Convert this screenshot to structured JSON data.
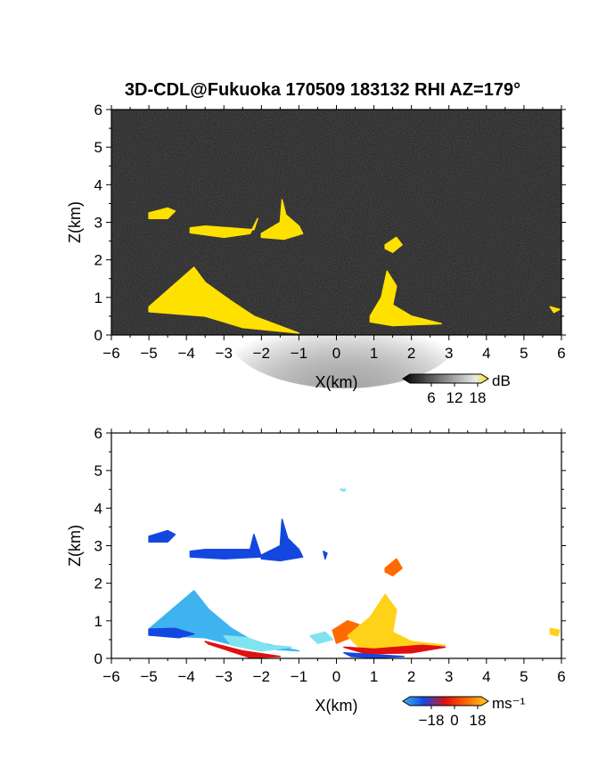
{
  "title": "3D-CDL@Fukuoka 170509 183132 RHI AZ=179°",
  "colors": {
    "snr_bg": "#1c1c1c",
    "snr_high": "#ffe100",
    "vel_neg_far": "#1447e0",
    "vel_neg_mid": "#3fb3f0",
    "vel_neg_near": "#7fe3f0",
    "vel_zero": "#e01010",
    "vel_pos_mid": "#ff6a00",
    "vel_pos_far": "#ffd21a"
  },
  "chart_data": [
    {
      "type": "heatmap",
      "name": "snr",
      "xlabel": "X(km)",
      "ylabel": "Z(km)",
      "xlim": [
        -6,
        6
      ],
      "ylim": [
        0,
        6
      ],
      "xticks": [
        "-6",
        "-5",
        "-4",
        "-3",
        "-2",
        "-1",
        "0",
        "1",
        "2",
        "3",
        "4",
        "5",
        "6"
      ],
      "yticks": [
        "0",
        "1",
        "2",
        "3",
        "4",
        "5",
        "6"
      ],
      "colorbar": {
        "ticks": [
          "6",
          "12",
          "18"
        ],
        "unit": "dB"
      },
      "regions": [
        {
          "color": "#ffe100",
          "points": [
            [
              -5.0,
              3.25
            ],
            [
              -4.5,
              3.38
            ],
            [
              -4.3,
              3.3
            ],
            [
              -4.5,
              3.1
            ],
            [
              -5.0,
              3.1
            ]
          ]
        },
        {
          "color": "#ffe100",
          "points": [
            [
              -3.9,
              2.85
            ],
            [
              -3.5,
              2.9
            ],
            [
              -2.2,
              2.8
            ],
            [
              -2.1,
              3.1
            ],
            [
              -2.3,
              2.7
            ],
            [
              -3.0,
              2.6
            ],
            [
              -3.9,
              2.72
            ]
          ]
        },
        {
          "color": "#ffe100",
          "points": [
            [
              -2.0,
              2.7
            ],
            [
              -1.5,
              3.0
            ],
            [
              -1.45,
              3.6
            ],
            [
              -1.35,
              3.2
            ],
            [
              -1.0,
              2.9
            ],
            [
              -0.9,
              2.7
            ],
            [
              -1.4,
              2.55
            ],
            [
              -2.0,
              2.6
            ]
          ]
        },
        {
          "color": "#ffe100",
          "points": [
            [
              1.3,
              2.4
            ],
            [
              1.6,
              2.6
            ],
            [
              1.75,
              2.4
            ],
            [
              1.5,
              2.2
            ],
            [
              1.3,
              2.3
            ]
          ]
        },
        {
          "color": "#ffe100",
          "points": [
            [
              -5.0,
              0.75
            ],
            [
              -3.8,
              1.8
            ],
            [
              -3.5,
              1.4
            ],
            [
              -2.8,
              0.9
            ],
            [
              -2.2,
              0.5
            ],
            [
              -1.0,
              0.05
            ],
            [
              -2.5,
              0.2
            ],
            [
              -3.5,
              0.5
            ],
            [
              -5.0,
              0.62
            ]
          ]
        },
        {
          "color": "#ffe100",
          "points": [
            [
              0.9,
              0.5
            ],
            [
              1.2,
              1.0
            ],
            [
              1.35,
              1.7
            ],
            [
              1.6,
              1.3
            ],
            [
              1.5,
              0.8
            ],
            [
              2.0,
              0.5
            ],
            [
              2.8,
              0.3
            ],
            [
              1.5,
              0.25
            ],
            [
              0.9,
              0.35
            ]
          ]
        },
        {
          "color": "#ffe100",
          "points": [
            [
              5.7,
              0.75
            ],
            [
              5.95,
              0.68
            ],
            [
              5.8,
              0.6
            ]
          ]
        }
      ]
    },
    {
      "type": "heatmap",
      "name": "velocity",
      "xlabel": "X(km)",
      "ylabel": "Z(km)",
      "xlim": [
        -6,
        6
      ],
      "ylim": [
        0,
        6
      ],
      "xticks": [
        "-6",
        "-5",
        "-4",
        "-3",
        "-2",
        "-1",
        "0",
        "1",
        "2",
        "3",
        "4",
        "5",
        "6"
      ],
      "yticks": [
        "0",
        "1",
        "2",
        "3",
        "4",
        "5",
        "6"
      ],
      "colorbar": {
        "ticks": [
          "−18",
          "0",
          "18"
        ],
        "unit": "ms⁻¹"
      },
      "regions": [
        {
          "color": "#1447e0",
          "points": [
            [
              -5.0,
              3.25
            ],
            [
              -4.5,
              3.4
            ],
            [
              -4.3,
              3.3
            ],
            [
              -4.5,
              3.1
            ],
            [
              -5.0,
              3.1
            ]
          ]
        },
        {
          "color": "#1447e0",
          "points": [
            [
              -3.9,
              2.85
            ],
            [
              -3.5,
              2.9
            ],
            [
              -2.3,
              2.9
            ],
            [
              -2.2,
              3.3
            ],
            [
              -2.0,
              2.7
            ],
            [
              -3.0,
              2.65
            ],
            [
              -3.9,
              2.7
            ]
          ]
        },
        {
          "color": "#1447e0",
          "points": [
            [
              -2.0,
              2.75
            ],
            [
              -1.5,
              3.0
            ],
            [
              -1.45,
              3.7
            ],
            [
              -1.3,
              3.2
            ],
            [
              -1.0,
              2.9
            ],
            [
              -0.9,
              2.7
            ],
            [
              -1.5,
              2.6
            ],
            [
              -2.0,
              2.65
            ]
          ]
        },
        {
          "color": "#1447e0",
          "points": [
            [
              -0.35,
              2.85
            ],
            [
              -0.25,
              2.8
            ],
            [
              -0.3,
              2.65
            ]
          ]
        },
        {
          "color": "#ff6a00",
          "points": [
            [
              1.3,
              2.4
            ],
            [
              1.6,
              2.65
            ],
            [
              1.75,
              2.4
            ],
            [
              1.5,
              2.2
            ],
            [
              1.3,
              2.3
            ]
          ]
        },
        {
          "color": "#3fb3f0",
          "points": [
            [
              -5.0,
              0.78
            ],
            [
              -3.8,
              1.8
            ],
            [
              -3.4,
              1.3
            ],
            [
              -2.8,
              0.8
            ],
            [
              -2.2,
              0.45
            ],
            [
              -1.0,
              0.2
            ],
            [
              -2.5,
              0.3
            ],
            [
              -3.5,
              0.55
            ],
            [
              -5.0,
              0.62
            ]
          ]
        },
        {
          "color": "#1447e0",
          "points": [
            [
              -5.0,
              0.78
            ],
            [
              -4.3,
              0.8
            ],
            [
              -3.8,
              0.65
            ],
            [
              -4.2,
              0.55
            ],
            [
              -5.0,
              0.62
            ]
          ]
        },
        {
          "color": "#7fe3f0",
          "points": [
            [
              -3.0,
              0.6
            ],
            [
              -2.4,
              0.55
            ],
            [
              -1.8,
              0.35
            ],
            [
              -1.2,
              0.3
            ],
            [
              -2.0,
              0.2
            ],
            [
              -2.8,
              0.35
            ]
          ]
        },
        {
          "color": "#e01010",
          "points": [
            [
              -3.5,
              0.45
            ],
            [
              -2.5,
              0.2
            ],
            [
              -1.5,
              0.05
            ],
            [
              -2.3,
              0.02
            ],
            [
              -3.4,
              0.38
            ]
          ]
        },
        {
          "color": "#7fe3f0",
          "points": [
            [
              -0.7,
              0.6
            ],
            [
              -0.3,
              0.7
            ],
            [
              -0.1,
              0.5
            ],
            [
              -0.5,
              0.4
            ]
          ]
        },
        {
          "color": "#ff6a00",
          "points": [
            [
              -0.1,
              0.75
            ],
            [
              0.3,
              1.0
            ],
            [
              0.6,
              0.9
            ],
            [
              0.5,
              0.6
            ],
            [
              0.0,
              0.4
            ]
          ]
        },
        {
          "color": "#ffd21a",
          "points": [
            [
              0.3,
              0.6
            ],
            [
              0.9,
              1.1
            ],
            [
              1.3,
              1.7
            ],
            [
              1.6,
              1.3
            ],
            [
              1.5,
              0.7
            ],
            [
              2.0,
              0.45
            ],
            [
              2.9,
              0.35
            ],
            [
              1.5,
              0.25
            ],
            [
              0.6,
              0.3
            ]
          ]
        },
        {
          "color": "#e01010",
          "points": [
            [
              0.2,
              0.3
            ],
            [
              1.0,
              0.25
            ],
            [
              2.3,
              0.35
            ],
            [
              2.9,
              0.3
            ],
            [
              2.0,
              0.15
            ],
            [
              0.8,
              0.12
            ]
          ]
        },
        {
          "color": "#1447e0",
          "points": [
            [
              0.2,
              0.15
            ],
            [
              1.0,
              0.1
            ],
            [
              1.8,
              0.05
            ],
            [
              1.0,
              0.02
            ],
            [
              0.4,
              0.05
            ]
          ]
        },
        {
          "color": "#7fe3f0",
          "points": [
            [
              0.1,
              4.5
            ],
            [
              0.25,
              4.5
            ],
            [
              0.2,
              4.45
            ]
          ]
        },
        {
          "color": "#ffd21a",
          "points": [
            [
              5.7,
              0.8
            ],
            [
              5.95,
              0.75
            ],
            [
              5.9,
              0.6
            ],
            [
              5.7,
              0.65
            ]
          ]
        }
      ]
    }
  ]
}
